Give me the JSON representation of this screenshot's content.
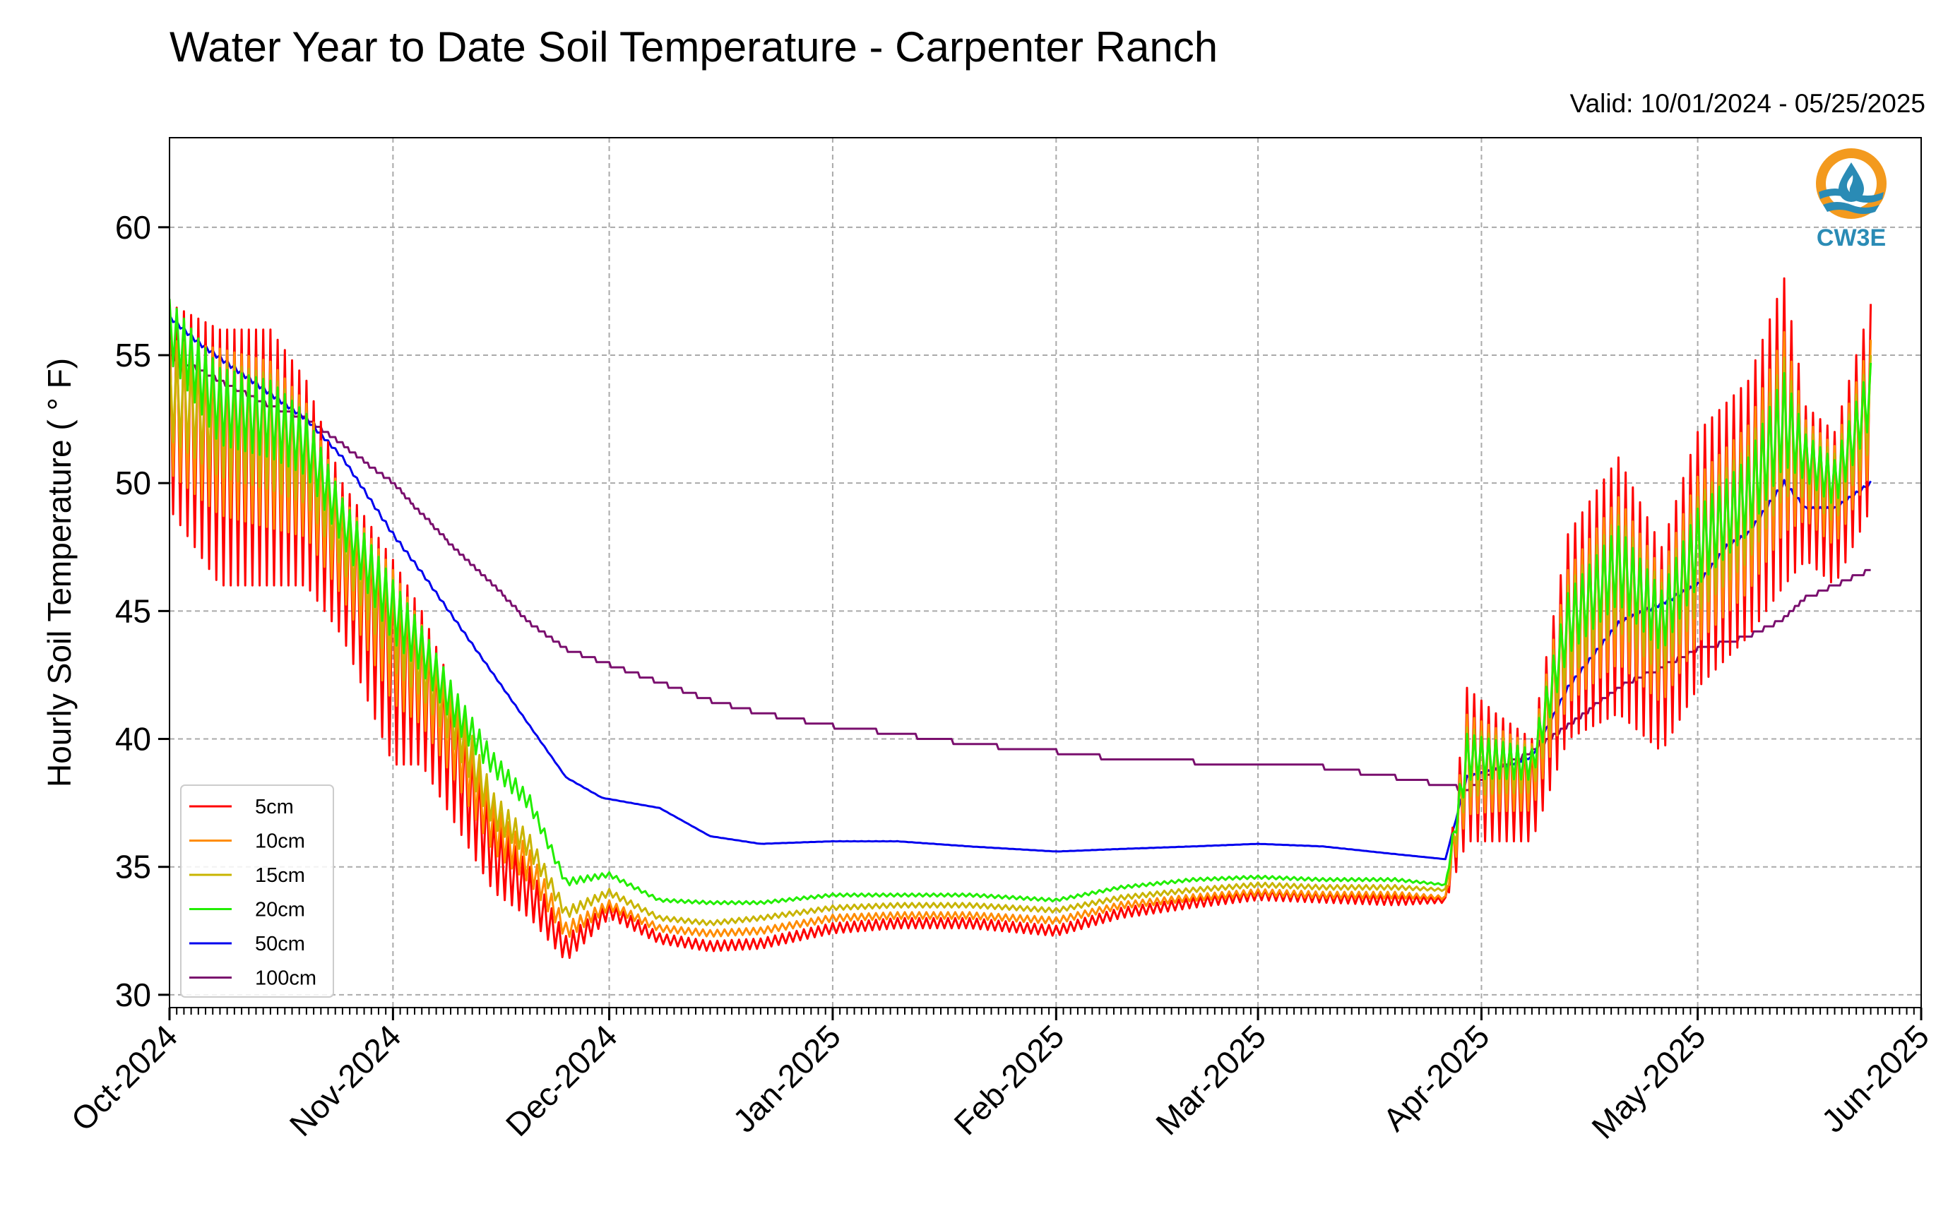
{
  "header": {
    "title": "Water Year to Date Soil Temperature - Carpenter Ranch",
    "subtitle": "Valid: 10/01/2024 - 05/25/2025"
  },
  "logo": {
    "text": "CW3E",
    "icon": "water-drop-logo-icon",
    "ring_color": "#f39a1e",
    "wave_color": "#2a8bb5"
  },
  "chart_data": {
    "type": "line",
    "title": "Water Year to Date Soil Temperature - Carpenter Ranch",
    "subtitle": "Valid: 10/01/2024 - 05/25/2025",
    "xlabel": "",
    "ylabel": "Hourly Soil Temperature ( ° F)",
    "x_ticks": [
      "Oct-2024",
      "Nov-2024",
      "Dec-2024",
      "Jan-2025",
      "Feb-2025",
      "Mar-2025",
      "Apr-2025",
      "May-2025",
      "Jun-2025"
    ],
    "xlim": [
      "2024-10-01",
      "2025-06-01"
    ],
    "ylim": [
      29.5,
      63.5
    ],
    "y_ticks": [
      30,
      35,
      40,
      45,
      50,
      55,
      60
    ],
    "grid": true,
    "grid_style": "dashed",
    "legend_position": "lower-left",
    "series": [
      {
        "name": "5cm",
        "color": "#ff0000",
        "x": [
          "2024-10-01",
          "2024-10-08",
          "2024-10-15",
          "2024-10-20",
          "2024-10-25",
          "2024-11-01",
          "2024-11-05",
          "2024-11-10",
          "2024-11-15",
          "2024-11-20",
          "2024-11-25",
          "2024-12-01",
          "2024-12-08",
          "2024-12-15",
          "2024-12-22",
          "2025-01-01",
          "2025-01-10",
          "2025-01-20",
          "2025-02-01",
          "2025-02-10",
          "2025-02-20",
          "2025-03-01",
          "2025-03-10",
          "2025-03-20",
          "2025-03-27",
          "2025-03-30",
          "2025-04-03",
          "2025-04-08",
          "2025-04-13",
          "2025-04-20",
          "2025-04-26",
          "2025-05-01",
          "2025-05-08",
          "2025-05-13",
          "2025-05-16",
          "2025-05-20",
          "2025-05-25"
        ],
        "y": [
          53,
          51,
          51,
          50,
          47,
          43,
          42,
          39,
          35.5,
          34,
          31.8,
          33.3,
          32.2,
          31.9,
          32,
          32.6,
          32.8,
          32.8,
          32.5,
          33.2,
          33.6,
          33.9,
          33.8,
          33.7,
          33.7,
          39,
          38.5,
          38,
          44,
          46,
          43.5,
          47,
          49,
          52,
          50,
          49,
          53
        ],
        "amplitude": [
          4,
          5,
          5,
          4,
          3,
          4,
          3,
          2.5,
          1.5,
          1,
          0.5,
          0.3,
          0.2,
          0.2,
          0.2,
          0.2,
          0.2,
          0.2,
          0.2,
          0.2,
          0.2,
          0.2,
          0.2,
          0.2,
          0.1,
          3,
          2.5,
          2,
          4,
          5,
          4,
          5,
          5,
          6,
          3,
          3,
          4
        ]
      },
      {
        "name": "10cm",
        "color": "#ff8c00",
        "x": [
          "2024-10-01",
          "2024-10-08",
          "2024-10-15",
          "2024-10-20",
          "2024-10-25",
          "2024-11-01",
          "2024-11-05",
          "2024-11-10",
          "2024-11-15",
          "2024-11-20",
          "2024-11-25",
          "2024-12-01",
          "2024-12-08",
          "2024-12-15",
          "2024-12-22",
          "2025-01-01",
          "2025-01-10",
          "2025-01-20",
          "2025-02-01",
          "2025-02-10",
          "2025-02-20",
          "2025-03-01",
          "2025-03-10",
          "2025-03-20",
          "2025-03-27",
          "2025-03-30",
          "2025-04-03",
          "2025-04-08",
          "2025-04-13",
          "2025-04-20",
          "2025-04-26",
          "2025-05-01",
          "2025-05-08",
          "2025-05-13",
          "2025-05-16",
          "2025-05-20",
          "2025-05-25"
        ],
        "y": [
          53,
          52,
          51.5,
          50.5,
          47.5,
          44,
          42.5,
          39.8,
          36.5,
          35,
          32.5,
          33.5,
          32.6,
          32.4,
          32.5,
          33,
          33.1,
          33.1,
          32.9,
          33.5,
          33.8,
          34,
          33.9,
          33.9,
          33.8,
          39,
          38.8,
          38.5,
          44,
          46.2,
          44,
          47,
          49,
          52,
          50.5,
          49.5,
          53
        ]
      },
      {
        "name": "15cm",
        "color": "#c8b400",
        "x": [
          "2024-10-01",
          "2024-10-08",
          "2024-10-15",
          "2024-10-20",
          "2024-10-25",
          "2024-11-01",
          "2024-11-05",
          "2024-11-10",
          "2024-11-15",
          "2024-11-20",
          "2024-11-25",
          "2024-12-01",
          "2024-12-08",
          "2024-12-15",
          "2024-12-22",
          "2025-01-01",
          "2025-01-10",
          "2025-01-20",
          "2025-02-01",
          "2025-02-10",
          "2025-02-20",
          "2025-03-01",
          "2025-03-10",
          "2025-03-20",
          "2025-03-27",
          "2025-03-30",
          "2025-04-03",
          "2025-04-08",
          "2025-04-13",
          "2025-04-20",
          "2025-04-26",
          "2025-05-01",
          "2025-05-08",
          "2025-05-13",
          "2025-05-16",
          "2025-05-20",
          "2025-05-25"
        ],
        "y": [
          53.5,
          52.5,
          52,
          51,
          48,
          44.5,
          43,
          40.5,
          37.2,
          35.8,
          33.2,
          34,
          33,
          32.8,
          33,
          33.4,
          33.5,
          33.5,
          33.3,
          33.8,
          34.1,
          34.3,
          34.2,
          34.2,
          34.1,
          39.1,
          39,
          38.8,
          44.2,
          46.5,
          44.3,
          47.2,
          49.2,
          52.2,
          50.8,
          49.8,
          53.2
        ]
      },
      {
        "name": "20cm",
        "color": "#22ee00",
        "x": [
          "2024-10-01",
          "2024-10-08",
          "2024-10-15",
          "2024-10-20",
          "2024-10-25",
          "2024-11-01",
          "2024-11-05",
          "2024-11-10",
          "2024-11-15",
          "2024-11-20",
          "2024-11-25",
          "2024-12-01",
          "2024-12-08",
          "2024-12-15",
          "2024-12-22",
          "2025-01-01",
          "2025-01-10",
          "2025-01-20",
          "2025-02-01",
          "2025-02-10",
          "2025-02-20",
          "2025-03-01",
          "2025-03-10",
          "2025-03-20",
          "2025-03-27",
          "2025-03-30",
          "2025-04-03",
          "2025-04-08",
          "2025-04-13",
          "2025-04-20",
          "2025-04-26",
          "2025-05-01",
          "2025-05-08",
          "2025-05-13",
          "2025-05-16",
          "2025-05-20",
          "2025-05-25"
        ],
        "y": [
          56,
          53,
          52.5,
          51.5,
          48.5,
          45,
          43.5,
          41,
          39,
          37.5,
          34.4,
          34.7,
          33.7,
          33.6,
          33.6,
          33.9,
          33.9,
          33.9,
          33.7,
          34.2,
          34.5,
          34.6,
          34.5,
          34.5,
          34.3,
          39.3,
          39.2,
          39,
          44.5,
          46.8,
          44.6,
          47.5,
          49.5,
          52.5,
          51,
          50,
          53.5
        ]
      },
      {
        "name": "50cm",
        "color": "#0000ee",
        "x": [
          "2024-10-01",
          "2024-10-05",
          "2024-10-15",
          "2024-10-20",
          "2024-10-25",
          "2024-11-01",
          "2024-11-05",
          "2024-11-10",
          "2024-11-15",
          "2024-11-20",
          "2024-11-25",
          "2024-11-30",
          "2024-12-08",
          "2024-12-15",
          "2024-12-22",
          "2025-01-01",
          "2025-01-10",
          "2025-01-20",
          "2025-02-01",
          "2025-02-10",
          "2025-02-20",
          "2025-03-01",
          "2025-03-10",
          "2025-03-20",
          "2025-03-27",
          "2025-03-30",
          "2025-04-03",
          "2025-04-08",
          "2025-04-13",
          "2025-04-20",
          "2025-04-26",
          "2025-05-01",
          "2025-05-05",
          "2025-05-08",
          "2025-05-13",
          "2025-05-16",
          "2025-05-20",
          "2025-05-25"
        ],
        "y": [
          56.5,
          55.5,
          53.5,
          52.5,
          51,
          48,
          46.5,
          44.5,
          42.5,
          40.5,
          38.5,
          37.7,
          37.3,
          36.2,
          35.9,
          36,
          36,
          35.8,
          35.6,
          35.7,
          35.8,
          35.9,
          35.8,
          35.5,
          35.3,
          38.5,
          38.8,
          39.3,
          42,
          44.5,
          45.3,
          46,
          47.5,
          48,
          50,
          49,
          49,
          50
        ]
      },
      {
        "name": "100cm",
        "color": "#7a0f6e",
        "x": [
          "2024-10-01",
          "2024-10-08",
          "2024-10-15",
          "2024-10-20",
          "2024-10-25",
          "2024-11-01",
          "2024-11-05",
          "2024-11-10",
          "2024-11-15",
          "2024-11-20",
          "2024-11-25",
          "2024-11-30",
          "2024-12-08",
          "2024-12-15",
          "2024-12-22",
          "2025-01-01",
          "2025-01-10",
          "2025-01-20",
          "2025-02-01",
          "2025-02-10",
          "2025-02-20",
          "2025-03-01",
          "2025-03-10",
          "2025-03-20",
          "2025-03-27",
          "2025-03-30",
          "2025-04-03",
          "2025-04-08",
          "2025-04-13",
          "2025-04-20",
          "2025-04-26",
          "2025-05-01",
          "2025-05-08",
          "2025-05-13",
          "2025-05-16",
          "2025-05-20",
          "2025-05-25"
        ],
        "y": [
          55,
          54,
          53,
          52.5,
          51.5,
          50,
          48.8,
          47.3,
          46,
          44.5,
          43.5,
          43,
          42.2,
          41.5,
          41,
          40.5,
          40.2,
          39.8,
          39.5,
          39.2,
          39.1,
          39,
          38.9,
          38.5,
          38.2,
          38,
          38.8,
          39.5,
          40.5,
          42,
          42.8,
          43.5,
          44,
          44.7,
          45.5,
          46,
          46.6
        ]
      }
    ]
  }
}
